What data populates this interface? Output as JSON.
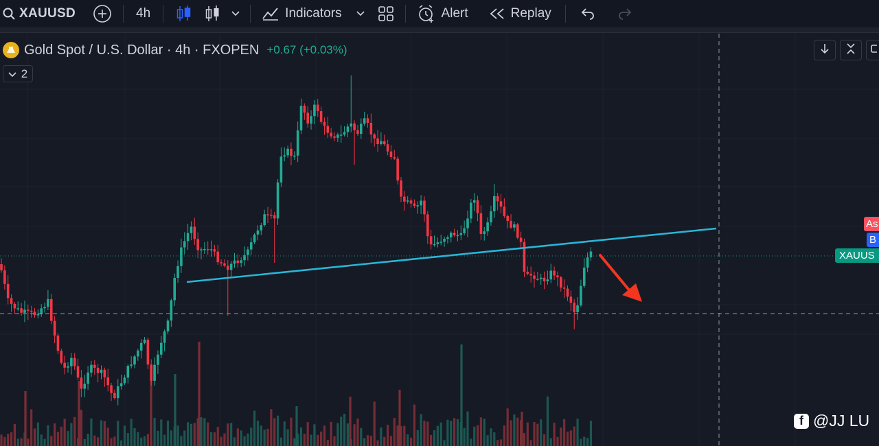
{
  "toolbar": {
    "symbol": "XAUUSD",
    "interval": "4h",
    "indicators_label": "Indicators",
    "alert_label": "Alert",
    "replay_label": "Replay"
  },
  "legend": {
    "title": "Gold Spot / U.S. Dollar · 4h · FXOPEN",
    "change": "+0.67 (+0.03%)",
    "collapsed_count": "2"
  },
  "price_scale": {
    "ask_label": "As",
    "bid_label": "B",
    "symbol_label": "XAUUS"
  },
  "watermark": {
    "text": "@JJ LU"
  },
  "colors": {
    "background": "#161a25",
    "up": "#22ab94",
    "down": "#f23645",
    "trendline": "#29b6d6",
    "arrow": "#f23620",
    "ask": "#f7525f",
    "bid": "#2962ff",
    "last_price": "#089981"
  },
  "icons": [
    "search-icon",
    "add-symbol-icon",
    "candles-icon",
    "bar-chart-icon",
    "indicators-icon",
    "layout-icon",
    "alert-icon",
    "replay-icon",
    "undo-icon",
    "redo-icon"
  ]
}
